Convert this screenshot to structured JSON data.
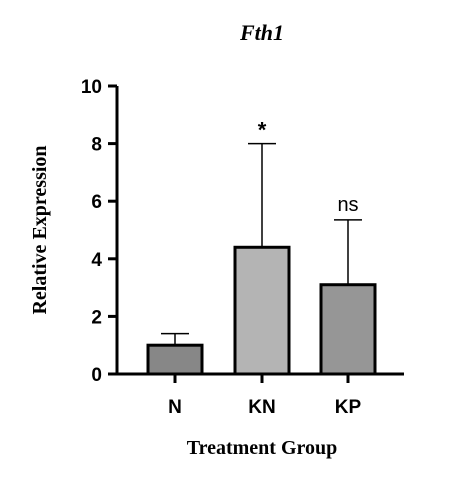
{
  "chart_data": {
    "type": "bar",
    "title": "Fth1",
    "xlabel": "Treatment Group",
    "ylabel": "Relative Expression",
    "categories": [
      "N",
      "KN",
      "KP"
    ],
    "values": [
      1.0,
      4.4,
      3.1
    ],
    "error_upper": [
      1.4,
      8.0,
      5.35
    ],
    "annotations": [
      "",
      "*",
      "ns"
    ],
    "ylim": [
      0,
      10
    ],
    "yticks": [
      "0",
      "2",
      "4",
      "6",
      "8",
      "10"
    ],
    "bar_colors": [
      "#878787",
      "#b4b4b4",
      "#969696"
    ],
    "grid": false
  }
}
